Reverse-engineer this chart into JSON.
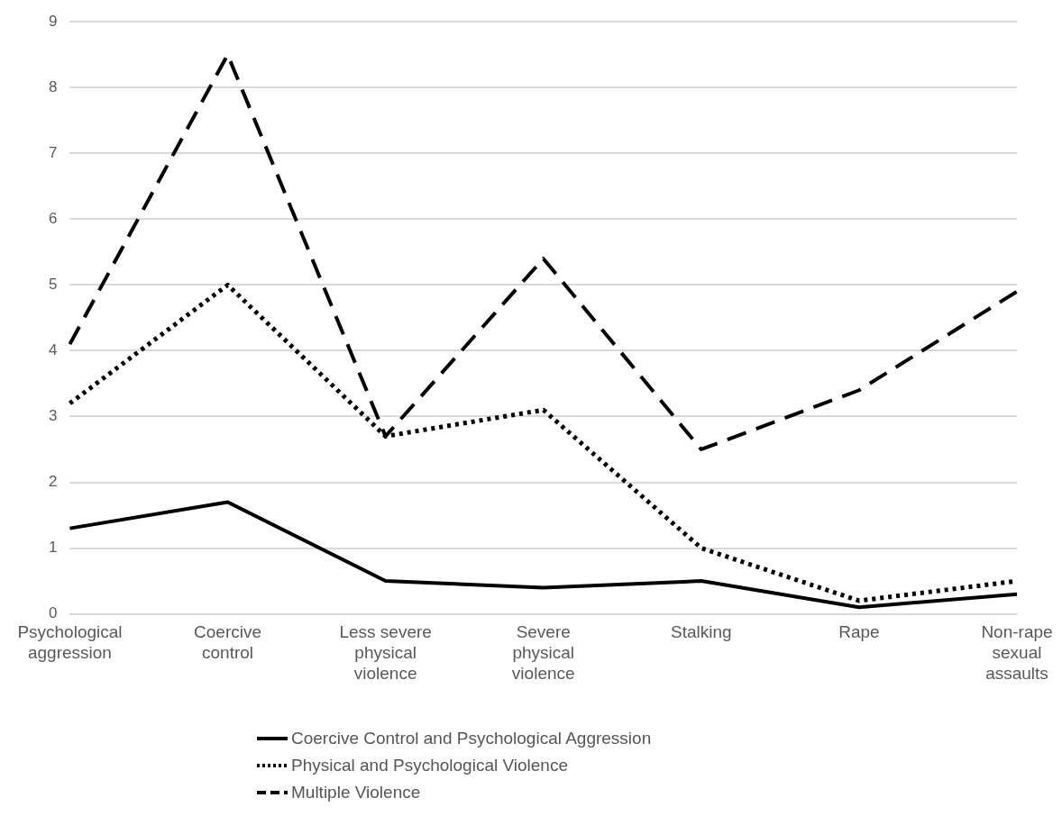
{
  "chart_data": {
    "type": "line",
    "categories": [
      "Psychological aggression",
      "Coercive control",
      "Less severe physical violence",
      "Severe physical violence",
      "Stalking",
      "Rape",
      "Non-rape sexual assaults"
    ],
    "series": [
      {
        "name": "Coercive Control and Psychological Aggression",
        "color": "#000000",
        "line_style": "solid",
        "values": [
          1.3,
          1.7,
          0.5,
          0.4,
          0.5,
          0.1,
          0.3
        ]
      },
      {
        "name": "Physical and Psychological Violence",
        "color": "#000000",
        "line_style": "dotted",
        "values": [
          3.2,
          5.0,
          2.7,
          3.1,
          1.0,
          0.2,
          0.5
        ]
      },
      {
        "name": "Multiple Violence",
        "color": "#000000",
        "line_style": "dashed",
        "values": [
          4.1,
          8.5,
          2.7,
          5.4,
          2.5,
          3.4,
          4.9
        ]
      }
    ],
    "ylim": [
      0,
      9
    ],
    "yticks": [
      0,
      1,
      2,
      3,
      4,
      5,
      6,
      7,
      8,
      9
    ],
    "grid": "y",
    "legend": "bottom",
    "marker": "none"
  }
}
